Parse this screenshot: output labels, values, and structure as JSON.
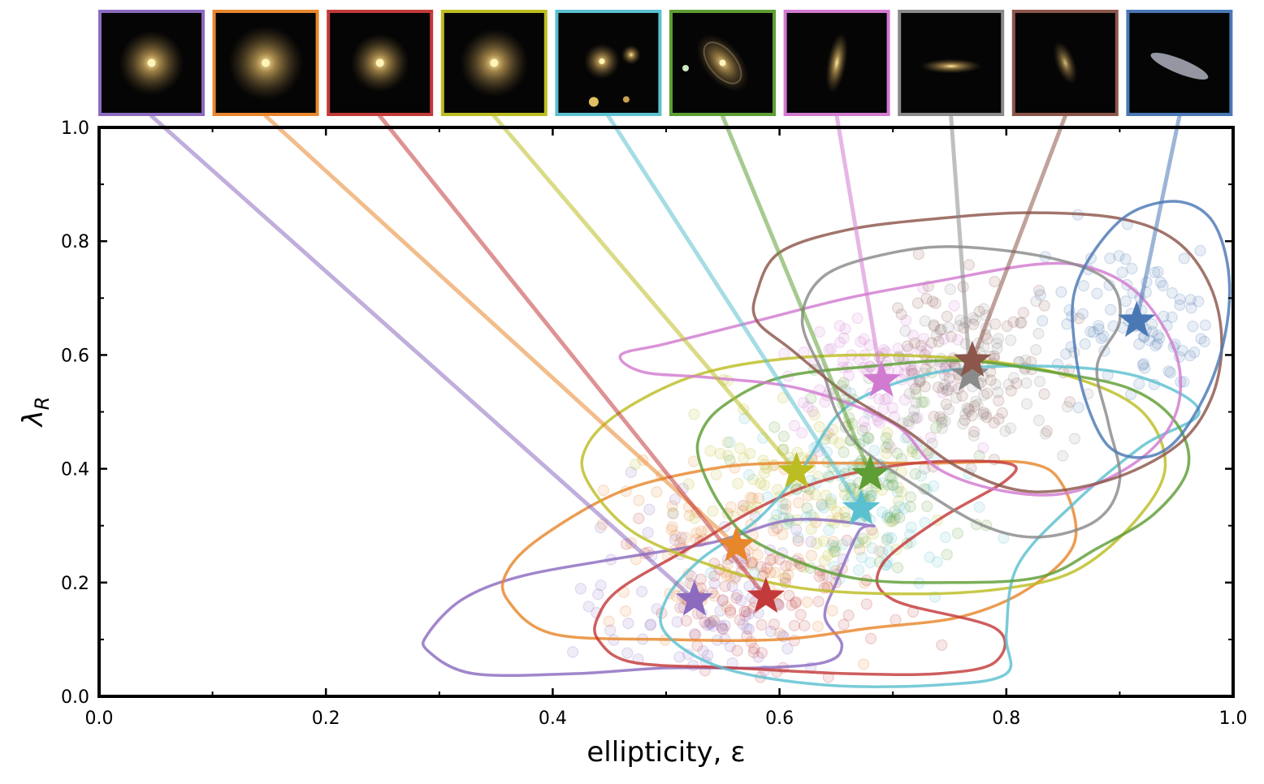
{
  "chart_data": {
    "type": "scatter",
    "title": "",
    "xlabel": "ellipticity, ε",
    "ylabel": "λ_R",
    "ylabel_main": "λ",
    "ylabel_sub": "R",
    "xlim": [
      0.0,
      1.0
    ],
    "ylim": [
      0.0,
      1.0
    ],
    "x_ticks": [
      0.0,
      0.2,
      0.4,
      0.6,
      0.8,
      1.0
    ],
    "y_ticks": [
      0.0,
      0.2,
      0.4,
      0.6,
      0.8,
      1.0
    ],
    "x_tick_labels": [
      "0.0",
      "0.2",
      "0.4",
      "0.6",
      "0.8",
      "1.0"
    ],
    "y_tick_labels": [
      "0.0",
      "0.2",
      "0.4",
      "0.6",
      "0.8",
      "1.0"
    ],
    "grid": false,
    "legend": "none",
    "series": [
      {
        "color": "#8c6bbf",
        "thumb": "round-galaxy",
        "centroid": [
          0.525,
          0.17
        ],
        "contour": [
          [
            0.29,
            0.08
          ],
          [
            0.33,
            0.04
          ],
          [
            0.42,
            0.04
          ],
          [
            0.5,
            0.05
          ],
          [
            0.58,
            0.05
          ],
          [
            0.64,
            0.06
          ],
          [
            0.655,
            0.09
          ],
          [
            0.64,
            0.14
          ],
          [
            0.65,
            0.2
          ],
          [
            0.67,
            0.29
          ],
          [
            0.68,
            0.3
          ],
          [
            0.61,
            0.31
          ],
          [
            0.54,
            0.27
          ],
          [
            0.45,
            0.24
          ],
          [
            0.37,
            0.21
          ],
          [
            0.32,
            0.17
          ],
          [
            0.29,
            0.11
          ]
        ]
      },
      {
        "color": "#e8862c",
        "thumb": "round-galaxy",
        "centroid": [
          0.562,
          0.265
        ],
        "contour": [
          [
            0.36,
            0.17
          ],
          [
            0.4,
            0.11
          ],
          [
            0.5,
            0.1
          ],
          [
            0.6,
            0.1
          ],
          [
            0.68,
            0.12
          ],
          [
            0.76,
            0.14
          ],
          [
            0.82,
            0.19
          ],
          [
            0.86,
            0.27
          ],
          [
            0.85,
            0.37
          ],
          [
            0.82,
            0.41
          ],
          [
            0.74,
            0.41
          ],
          [
            0.66,
            0.41
          ],
          [
            0.6,
            0.41
          ],
          [
            0.54,
            0.4
          ],
          [
            0.46,
            0.36
          ],
          [
            0.39,
            0.28
          ],
          [
            0.36,
            0.22
          ]
        ]
      },
      {
        "color": "#c33a3a",
        "thumb": "round-galaxy",
        "centroid": [
          0.588,
          0.175
        ],
        "contour": [
          [
            0.44,
            0.1
          ],
          [
            0.47,
            0.06
          ],
          [
            0.56,
            0.05
          ],
          [
            0.66,
            0.04
          ],
          [
            0.74,
            0.04
          ],
          [
            0.79,
            0.06
          ],
          [
            0.79,
            0.12
          ],
          [
            0.7,
            0.17
          ],
          [
            0.69,
            0.23
          ],
          [
            0.74,
            0.31
          ],
          [
            0.8,
            0.38
          ],
          [
            0.8,
            0.41
          ],
          [
            0.72,
            0.41
          ],
          [
            0.64,
            0.38
          ],
          [
            0.58,
            0.33
          ],
          [
            0.52,
            0.26
          ],
          [
            0.46,
            0.19
          ],
          [
            0.44,
            0.14
          ]
        ]
      },
      {
        "color": "#bcbd22",
        "thumb": "round-galaxy",
        "centroid": [
          0.615,
          0.395
        ],
        "contour": [
          [
            0.43,
            0.38
          ],
          [
            0.47,
            0.29
          ],
          [
            0.54,
            0.23
          ],
          [
            0.62,
            0.19
          ],
          [
            0.72,
            0.18
          ],
          [
            0.8,
            0.19
          ],
          [
            0.86,
            0.22
          ],
          [
            0.91,
            0.3
          ],
          [
            0.94,
            0.4
          ],
          [
            0.92,
            0.5
          ],
          [
            0.86,
            0.56
          ],
          [
            0.78,
            0.59
          ],
          [
            0.68,
            0.6
          ],
          [
            0.59,
            0.59
          ],
          [
            0.52,
            0.56
          ],
          [
            0.46,
            0.5
          ],
          [
            0.43,
            0.44
          ]
        ]
      },
      {
        "color": "#5bc0d0",
        "thumb": "multi",
        "centroid": [
          0.672,
          0.33
        ],
        "contour": [
          [
            0.5,
            0.11
          ],
          [
            0.55,
            0.05
          ],
          [
            0.64,
            0.02
          ],
          [
            0.74,
            0.02
          ],
          [
            0.8,
            0.04
          ],
          [
            0.8,
            0.11
          ],
          [
            0.81,
            0.23
          ],
          [
            0.86,
            0.34
          ],
          [
            0.92,
            0.44
          ],
          [
            0.97,
            0.5
          ],
          [
            0.92,
            0.56
          ],
          [
            0.84,
            0.58
          ],
          [
            0.74,
            0.57
          ],
          [
            0.66,
            0.51
          ],
          [
            0.62,
            0.4
          ],
          [
            0.58,
            0.31
          ],
          [
            0.53,
            0.24
          ],
          [
            0.5,
            0.17
          ]
        ]
      },
      {
        "color": "#5e9e35",
        "thumb": "spiral",
        "centroid": [
          0.68,
          0.39
        ],
        "contour": [
          [
            0.53,
            0.41
          ],
          [
            0.55,
            0.33
          ],
          [
            0.58,
            0.27
          ],
          [
            0.66,
            0.21
          ],
          [
            0.75,
            0.2
          ],
          [
            0.83,
            0.21
          ],
          [
            0.88,
            0.26
          ],
          [
            0.93,
            0.32
          ],
          [
            0.96,
            0.4
          ],
          [
            0.95,
            0.48
          ],
          [
            0.91,
            0.54
          ],
          [
            0.84,
            0.57
          ],
          [
            0.76,
            0.59
          ],
          [
            0.68,
            0.58
          ],
          [
            0.6,
            0.56
          ],
          [
            0.55,
            0.51
          ],
          [
            0.53,
            0.46
          ]
        ]
      },
      {
        "color": "#d27ad0",
        "thumb": "edge-spiral",
        "centroid": [
          0.69,
          0.555
        ],
        "contour": [
          [
            0.46,
            0.6
          ],
          [
            0.5,
            0.62
          ],
          [
            0.58,
            0.66
          ],
          [
            0.66,
            0.7
          ],
          [
            0.74,
            0.73
          ],
          [
            0.83,
            0.76
          ],
          [
            0.88,
            0.75
          ],
          [
            0.92,
            0.7
          ],
          [
            0.95,
            0.6
          ],
          [
            0.95,
            0.5
          ],
          [
            0.92,
            0.42
          ],
          [
            0.86,
            0.36
          ],
          [
            0.8,
            0.36
          ],
          [
            0.74,
            0.4
          ],
          [
            0.7,
            0.48
          ],
          [
            0.62,
            0.54
          ],
          [
            0.54,
            0.56
          ],
          [
            0.48,
            0.57
          ]
        ]
      },
      {
        "color": "#8a8a8a",
        "thumb": "edge-on",
        "centroid": [
          0.768,
          0.565
        ],
        "contour": [
          [
            0.64,
            0.56
          ],
          [
            0.62,
            0.66
          ],
          [
            0.64,
            0.74
          ],
          [
            0.7,
            0.78
          ],
          [
            0.76,
            0.79
          ],
          [
            0.84,
            0.77
          ],
          [
            0.89,
            0.73
          ],
          [
            0.9,
            0.66
          ],
          [
            0.88,
            0.58
          ],
          [
            0.89,
            0.48
          ],
          [
            0.9,
            0.38
          ],
          [
            0.88,
            0.31
          ],
          [
            0.83,
            0.28
          ],
          [
            0.78,
            0.3
          ],
          [
            0.72,
            0.37
          ],
          [
            0.67,
            0.44
          ],
          [
            0.65,
            0.5
          ]
        ]
      },
      {
        "color": "#8c564b",
        "thumb": "faint",
        "centroid": [
          0.77,
          0.59
        ],
        "contour": [
          [
            0.58,
            0.71
          ],
          [
            0.6,
            0.78
          ],
          [
            0.66,
            0.82
          ],
          [
            0.74,
            0.84
          ],
          [
            0.82,
            0.85
          ],
          [
            0.9,
            0.84
          ],
          [
            0.95,
            0.8
          ],
          [
            0.98,
            0.72
          ],
          [
            0.99,
            0.62
          ],
          [
            0.98,
            0.52
          ],
          [
            0.95,
            0.44
          ],
          [
            0.89,
            0.38
          ],
          [
            0.82,
            0.36
          ],
          [
            0.76,
            0.4
          ],
          [
            0.71,
            0.47
          ],
          [
            0.66,
            0.53
          ],
          [
            0.61,
            0.61
          ],
          [
            0.58,
            0.66
          ]
        ]
      },
      {
        "color": "#4a78b5",
        "thumb": "edge-on",
        "centroid": [
          0.915,
          0.66
        ],
        "contour": [
          [
            0.86,
            0.62
          ],
          [
            0.86,
            0.71
          ],
          [
            0.88,
            0.79
          ],
          [
            0.91,
            0.85
          ],
          [
            0.95,
            0.87
          ],
          [
            0.98,
            0.84
          ],
          [
            0.995,
            0.76
          ],
          [
            0.995,
            0.66
          ],
          [
            0.98,
            0.55
          ],
          [
            0.95,
            0.45
          ],
          [
            0.92,
            0.42
          ],
          [
            0.89,
            0.44
          ],
          [
            0.87,
            0.52
          ]
        ]
      }
    ]
  }
}
